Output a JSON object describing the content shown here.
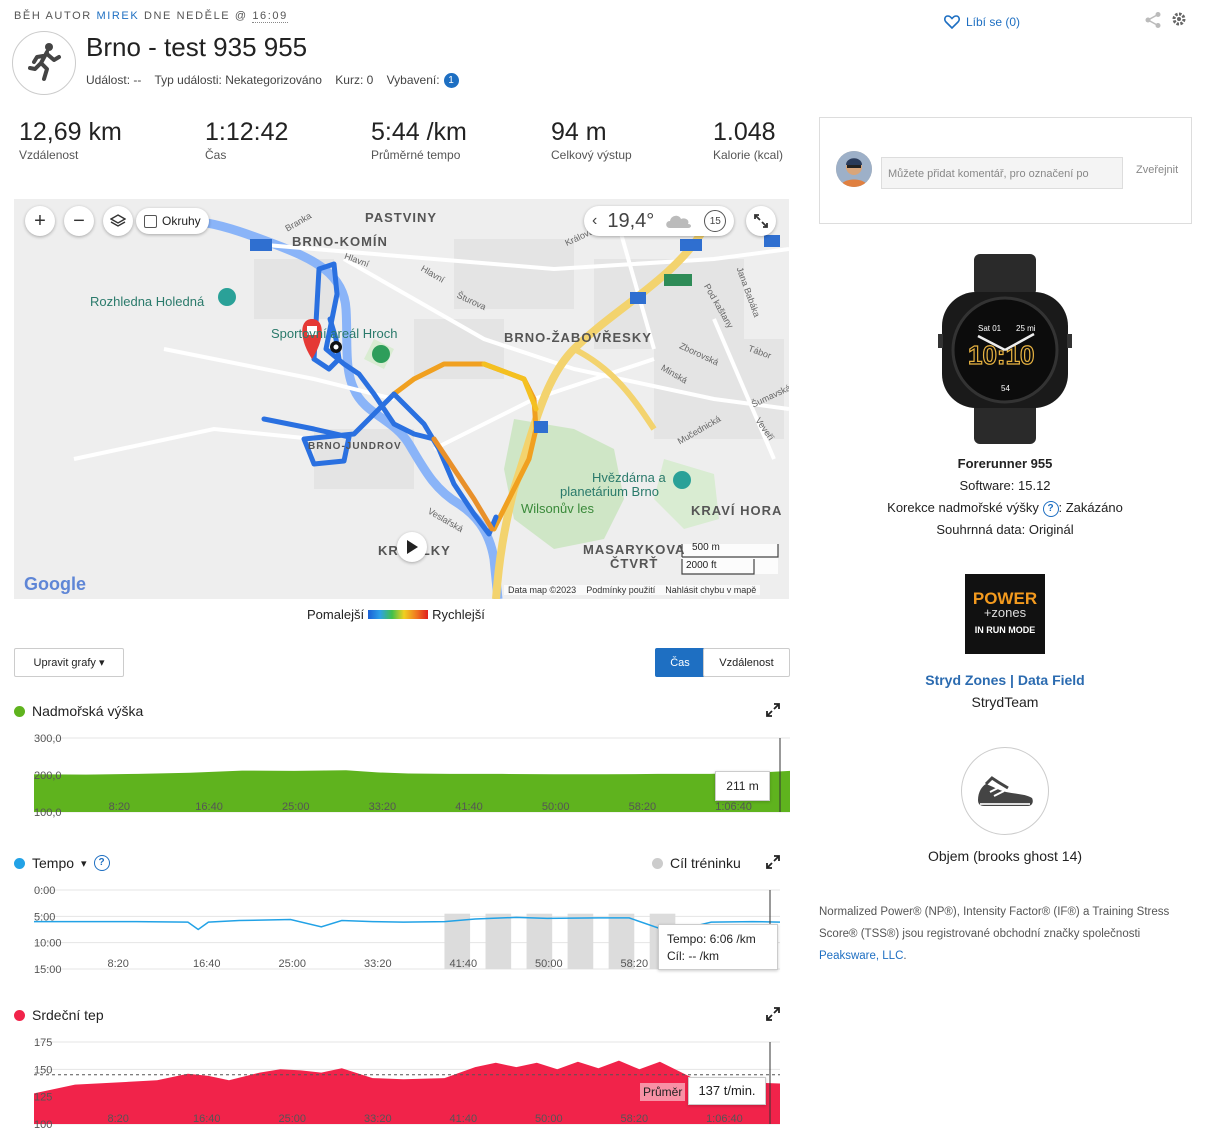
{
  "header": {
    "byline_prefix": "BĚH AUTOR",
    "author": "MIREK",
    "byline_mid": "DNE NEDĚLE @",
    "time": "16:09",
    "title": "Brno - test 935 955",
    "meta": {
      "event": "Událost: --",
      "event_type": "Typ události: Nekategorizováno",
      "course": "Kurz: 0",
      "gear_label": "Vybavení:",
      "gear_count": "1"
    },
    "like_label": "Líbí se (0)"
  },
  "stats": [
    {
      "value": "12,69 km",
      "label": "Vzdálenost"
    },
    {
      "value": "1:12:42",
      "label": "Čas"
    },
    {
      "value": "5:44 /km",
      "label": "Průměrné tempo"
    },
    {
      "value": "94 m",
      "label": "Celkový výstup"
    },
    {
      "value": "1.048",
      "label": "Kalorie (kcal)"
    }
  ],
  "map": {
    "okruhy_label": "Okruhy",
    "temperature": "19,4°",
    "wind": "15",
    "labels": {
      "pastviny": "PASTVINY",
      "komin": "BRNO-KOMÍN",
      "zabovresky": "BRNO-ŽABOVŘESKY",
      "jundrov": "BRNO-JUNDROV",
      "kravi": "KRAVÍ HORA",
      "masaryk1": "MASARYKOVA",
      "masaryk2": "ČTVRŤ",
      "krpole": "KR     LKY"
    },
    "pois": {
      "holedna": "Rozhledna Holedná",
      "sport": "Sportovní areál Hroch",
      "hvezdarna1": "Hvězdárna a",
      "hvezdarna2": "planetárium Brno",
      "wilson": "Wilsonův les"
    },
    "streets": {
      "branka": "Branka",
      "hlavni1": "Hlavní",
      "hlavni2": "Hlavní",
      "sturova": "Šturova",
      "kralova": "Králova",
      "janababaka": "Jana Babáka",
      "podkastany": "Pod kaštany",
      "zborovska": "Zborovská",
      "minska": "Minská",
      "tabor": "Tábor",
      "sumavska": "Šumavská",
      "veveri": "Veveří",
      "mucednicka": "Mučednická",
      "veslarska": "Veslařská"
    },
    "road_badges": [
      "384",
      "640",
      "42",
      "E461",
      "42",
      "42"
    ],
    "scale_m": "500 m",
    "scale_ft": "2000 ft",
    "google": "Google",
    "data_label": "Data map ©2023",
    "terms": "Podmínky použití",
    "report": "Nahlásit chybu v mapě",
    "slower": "Pomalejší",
    "faster": "Rychlejší"
  },
  "charts_toolbar": {
    "edit_label": "Upravit grafy ▾",
    "time_label": "Čas",
    "distance_label": "Vzdálenost"
  },
  "colors": {
    "elevation": "#5fb31e",
    "pace": "#22a2e6",
    "heart": "#f1234a",
    "accent": "#1e6fc2"
  },
  "x_ticks": [
    "8:20",
    "16:40",
    "25:00",
    "33:20",
    "41:40",
    "50:00",
    "58:20",
    "1:06:40"
  ],
  "chart_data": [
    {
      "type": "area",
      "title": "Nadmořská výška",
      "y_ticks": [
        "300,0",
        "200,0",
        "100,0"
      ],
      "ylim": [
        100,
        300
      ],
      "x_minutes": [
        0,
        5,
        10,
        15,
        20,
        25,
        30,
        33,
        36,
        40,
        45,
        50,
        55,
        60,
        65,
        70,
        72.7
      ],
      "y": [
        202,
        201,
        203,
        206,
        212,
        211,
        213,
        207,
        204,
        203,
        203,
        202,
        202,
        203,
        203,
        207,
        211
      ],
      "tooltip": "211 m"
    },
    {
      "type": "line",
      "title": "Tempo",
      "target_label": "Cíl tréninku",
      "y_ticks": [
        "0:00",
        "5:00",
        "10:00",
        "15:00"
      ],
      "ylim": [
        0,
        15
      ],
      "x_minutes": [
        0,
        10,
        15,
        16,
        17,
        20,
        25,
        28,
        30,
        33,
        36,
        40,
        43,
        47,
        50,
        55,
        58,
        62,
        66,
        70,
        72.7
      ],
      "y": [
        6.0,
        6.0,
        6.1,
        7.5,
        6.1,
        5.8,
        5.6,
        7.0,
        5.8,
        6.0,
        6.1,
        6.0,
        5.5,
        5.2,
        5.4,
        5.3,
        5.3,
        8.0,
        6.1,
        6.0,
        6.1
      ],
      "target_blocks": [
        [
          40,
          42.5
        ],
        [
          44,
          46.5
        ],
        [
          48,
          50.5
        ],
        [
          52,
          54.5
        ],
        [
          56,
          58.5
        ],
        [
          60,
          62.5
        ]
      ],
      "tooltip_pace": "Tempo: 6:06 /km",
      "tooltip_target": "Cíl: -- /km"
    },
    {
      "type": "area",
      "title": "Srdeční tep",
      "y_ticks": [
        "175",
        "150",
        "125",
        "100"
      ],
      "ylim": [
        100,
        175
      ],
      "avg": 145,
      "avg_label": "Průměr",
      "x_minutes": [
        0,
        4,
        8,
        12,
        15,
        17,
        19,
        22,
        24,
        26,
        28,
        30,
        33,
        36,
        40,
        43,
        45,
        47,
        49,
        51,
        53,
        55,
        57,
        59,
        61,
        64,
        67,
        70,
        72.7
      ],
      "y": [
        128,
        136,
        138,
        140,
        146,
        144,
        140,
        147,
        150,
        149,
        147,
        151,
        142,
        141,
        142,
        152,
        156,
        152,
        156,
        150,
        157,
        151,
        158,
        150,
        157,
        143,
        136,
        138,
        137
      ],
      "tooltip": "137 t/min."
    }
  ],
  "comment": {
    "placeholder": "Můžete přidat komentář, pro označení po",
    "publish": "Zveřejnit"
  },
  "device": {
    "watch_top": "Sat 01",
    "watch_right": "25 mi",
    "watch_time": "10:10",
    "watch_bottom": "54",
    "name": "Forerunner 955",
    "software": "Software: 15.12",
    "altitude_label": "Korekce nadmořské výšky",
    "altitude_value": ": Zakázáno",
    "summary": "Souhrnná data: Originál"
  },
  "app": {
    "logo_line1": "POWER",
    "logo_line2": "+zones",
    "logo_line3": "IN RUN MODE",
    "name": "Stryd Zones | Data Field",
    "author": "StrydTeam"
  },
  "gear": {
    "name": "Objem (brooks ghost 14)"
  },
  "footer": {
    "text": "Normalized Power® (NP®), Intensity Factor® (IF®) a Training Stress Score® (TSS®) jsou registrované obchodní značky společnosti",
    "link": "Peaksware, LLC",
    "end": "."
  }
}
